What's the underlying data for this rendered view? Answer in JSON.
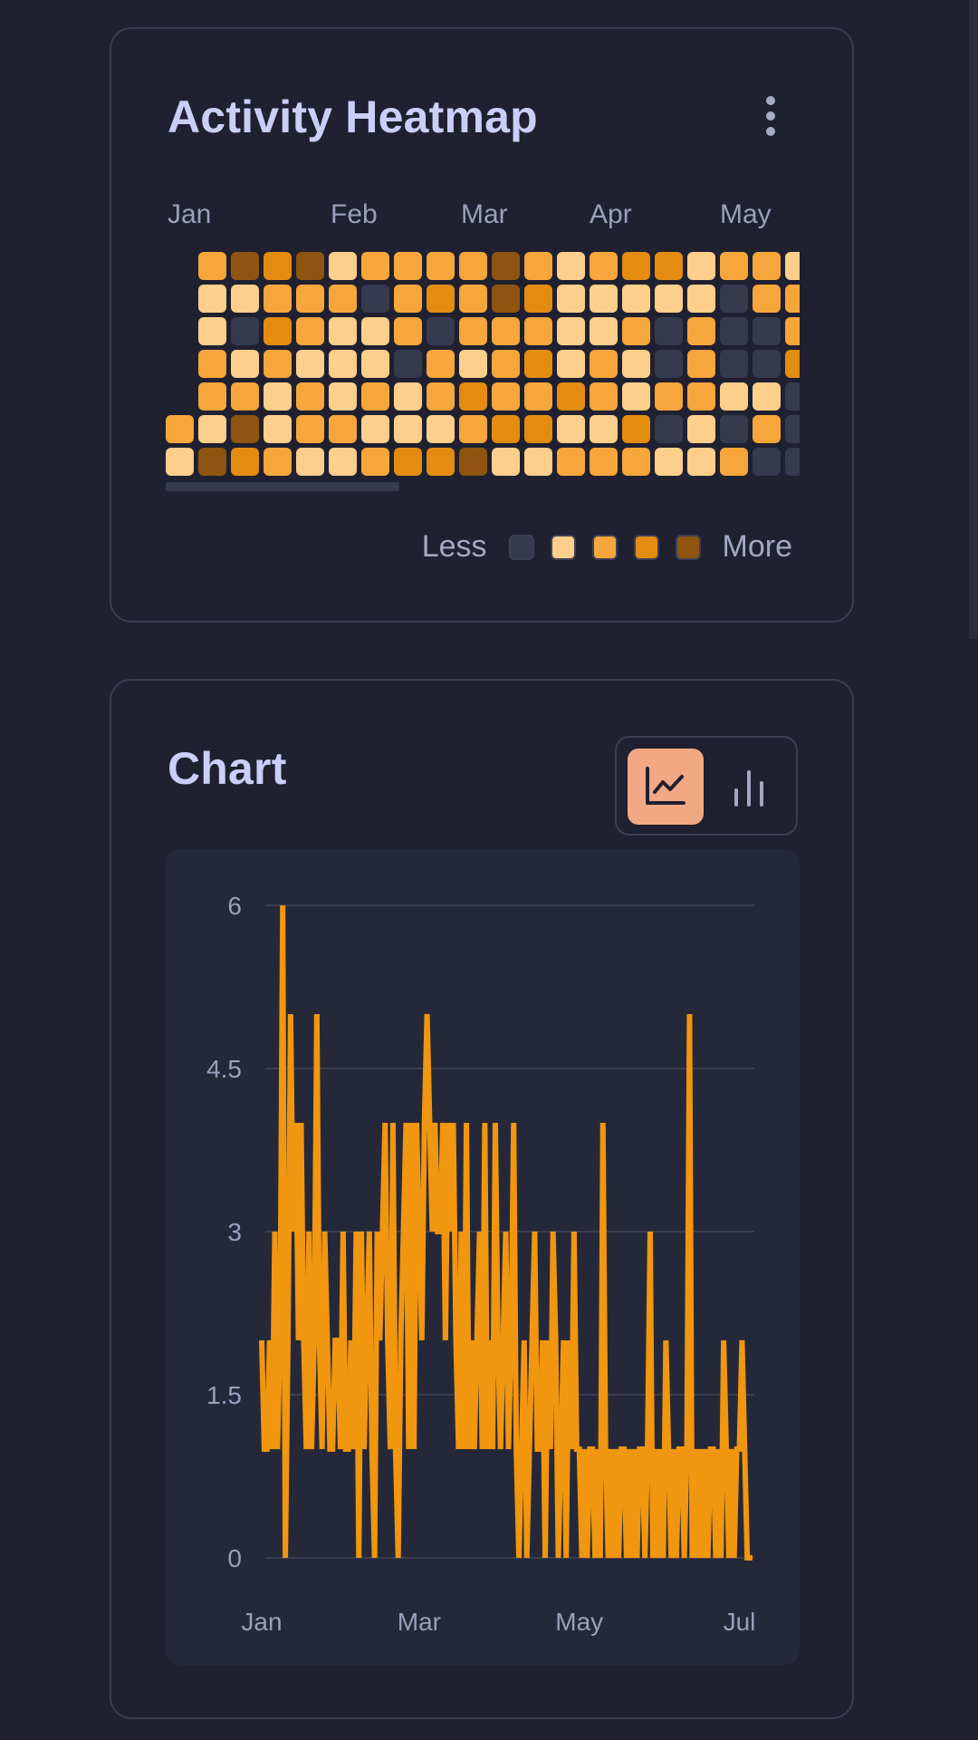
{
  "heatmap": {
    "title": "Activity Heatmap",
    "months": [
      "Jan",
      "Feb",
      "Mar",
      "Apr",
      "May"
    ],
    "legend_less": "Less",
    "legend_more": "More",
    "level_colors": [
      "#363a4f",
      "#fdcf8a",
      "#f6a63a",
      "#e48c10",
      "#8f5510"
    ],
    "grid": [
      [
        -1,
        2,
        4,
        3,
        4,
        1,
        2,
        2,
        2,
        2,
        4,
        2,
        1,
        2,
        3,
        3,
        1,
        2,
        2,
        1
      ],
      [
        -1,
        1,
        1,
        2,
        2,
        2,
        0,
        2,
        3,
        2,
        4,
        3,
        1,
        1,
        1,
        1,
        1,
        0,
        2,
        2
      ],
      [
        -1,
        1,
        0,
        3,
        2,
        1,
        1,
        2,
        0,
        2,
        2,
        2,
        1,
        1,
        2,
        0,
        2,
        0,
        0,
        2
      ],
      [
        -1,
        2,
        1,
        2,
        1,
        1,
        1,
        0,
        2,
        1,
        2,
        3,
        1,
        2,
        1,
        0,
        2,
        0,
        0,
        3
      ],
      [
        -1,
        2,
        2,
        1,
        2,
        1,
        2,
        1,
        2,
        3,
        2,
        2,
        3,
        2,
        1,
        2,
        2,
        1,
        1,
        0
      ],
      [
        2,
        1,
        4,
        1,
        2,
        2,
        1,
        1,
        1,
        2,
        3,
        3,
        1,
        1,
        3,
        0,
        1,
        0,
        2,
        0
      ],
      [
        1,
        4,
        3,
        2,
        1,
        1,
        2,
        3,
        3,
        4,
        1,
        1,
        2,
        2,
        2,
        1,
        1,
        2,
        0,
        0
      ]
    ]
  },
  "chart": {
    "title": "Chart",
    "modes": [
      "line-chart-icon",
      "bar-chart-icon"
    ],
    "active_mode": "line",
    "line_color": "#f0960f"
  },
  "chart_data": {
    "type": "line",
    "title": "Chart",
    "xlabel": "",
    "ylabel": "",
    "ylim": [
      0,
      6
    ],
    "yticks": [
      "0",
      "1.5",
      "3",
      "4.5",
      "6"
    ],
    "xticks": [
      {
        "label": "Jan",
        "date": "2024-01-01"
      },
      {
        "label": "Mar",
        "date": "2024-03-01"
      },
      {
        "label": "May",
        "date": "2024-05-01"
      },
      {
        "label": "Jul",
        "date": "2024-07-01"
      }
    ],
    "x_start": "2024-01-01",
    "x_step": "1 day",
    "values": [
      2,
      1,
      1,
      2,
      1,
      3,
      1,
      2,
      6,
      0,
      2,
      5,
      3,
      4,
      2,
      4,
      2,
      1,
      3,
      1,
      2,
      5,
      2,
      1,
      3,
      2,
      1,
      1,
      2,
      2,
      1,
      3,
      1,
      1,
      2,
      1,
      3,
      0,
      3,
      1,
      2,
      3,
      1,
      0,
      3,
      2,
      3,
      4,
      2,
      1,
      4,
      1,
      0,
      2,
      3,
      4,
      1,
      4,
      1,
      4,
      3,
      2,
      4,
      5,
      4,
      3,
      4,
      3,
      3,
      4,
      2,
      4,
      3,
      4,
      2,
      1,
      3,
      1,
      4,
      1,
      2,
      1,
      2,
      3,
      1,
      4,
      1,
      2,
      1,
      4,
      2,
      1,
      2,
      3,
      1,
      2,
      4,
      1,
      0,
      1,
      2,
      0,
      1,
      2,
      3,
      1,
      1,
      2,
      0,
      2,
      1,
      3,
      2,
      0,
      1,
      2,
      0,
      2,
      1,
      3,
      1,
      1,
      0,
      1,
      0,
      1,
      1,
      0,
      1,
      0,
      4,
      1,
      0,
      1,
      0,
      1,
      0,
      1,
      1,
      0,
      1,
      0,
      1,
      0,
      1,
      1,
      0,
      1,
      3,
      0,
      1,
      0,
      1,
      0,
      2,
      1,
      0,
      1,
      0,
      1,
      1,
      0,
      1,
      5,
      0,
      1,
      0,
      1,
      0,
      1,
      0,
      1,
      1,
      0,
      1,
      0,
      2,
      1,
      0,
      1,
      0,
      1,
      1,
      2,
      1,
      0,
      0,
      0
    ]
  }
}
